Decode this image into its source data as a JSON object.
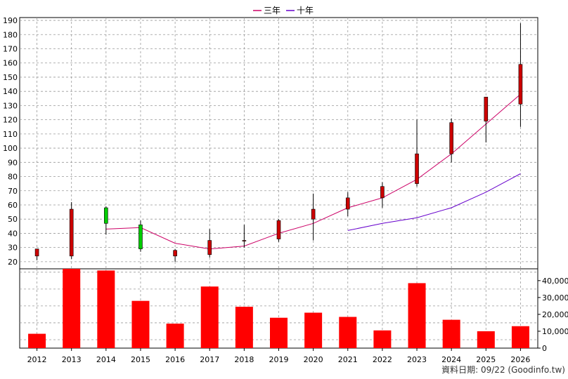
{
  "legend": {
    "items": [
      {
        "label": "三年",
        "color": "#cc0066"
      },
      {
        "label": "十年",
        "color": "#6600cc"
      }
    ]
  },
  "source_text": "資料日期: 09/22 (Goodinfo.tw)",
  "colors": {
    "up_candle": "#cc0000",
    "down_candle": "#00cc00",
    "bar": "#ff0000",
    "grid": "#999999"
  },
  "chart_data": [
    {
      "type": "candlestick",
      "title": "",
      "categories": [
        "2012",
        "2013",
        "2014",
        "2015",
        "2016",
        "2017",
        "2018",
        "2019",
        "2020",
        "2021",
        "2022",
        "2023",
        "2024",
        "2025",
        "2026"
      ],
      "ohlc": [
        {
          "open": 24,
          "high": 29,
          "low": 21,
          "close": 29
        },
        {
          "open": 24,
          "high": 62,
          "low": 22,
          "close": 57
        },
        {
          "open": 58,
          "high": 59,
          "low": 39,
          "close": 47
        },
        {
          "open": 46,
          "high": 49,
          "low": 27,
          "close": 29
        },
        {
          "open": 24,
          "high": 29,
          "low": 20,
          "close": 28
        },
        {
          "open": 25,
          "high": 43,
          "low": 23,
          "close": 35
        },
        {
          "open": 35,
          "high": 46,
          "low": 30,
          "close": 35
        },
        {
          "open": 36,
          "high": 50,
          "low": 34,
          "close": 49
        },
        {
          "open": 50,
          "high": 68,
          "low": 35,
          "close": 57
        },
        {
          "open": 57,
          "high": 69,
          "low": 52,
          "close": 65
        },
        {
          "open": 65,
          "high": 76,
          "low": 58,
          "close": 73
        },
        {
          "open": 75,
          "high": 120,
          "low": 73,
          "close": 96
        },
        {
          "open": 96,
          "high": 121,
          "low": 90,
          "close": 118
        },
        {
          "open": 119,
          "high": 136,
          "low": 104,
          "close": 136
        },
        {
          "open": 131,
          "high": 188,
          "low": 115,
          "close": 159
        }
      ],
      "series": [
        {
          "name": "三年",
          "color": "#cc0066",
          "values": [
            null,
            null,
            43,
            44,
            33,
            29,
            31,
            40,
            47,
            58,
            65,
            78,
            96,
            117,
            138
          ]
        },
        {
          "name": "十年",
          "color": "#6600cc",
          "values": [
            null,
            null,
            null,
            null,
            null,
            null,
            null,
            null,
            null,
            42,
            47,
            51,
            58,
            69,
            82
          ]
        }
      ],
      "y_ticks": [
        20,
        30,
        40,
        50,
        60,
        70,
        80,
        90,
        100,
        110,
        120,
        130,
        140,
        150,
        160,
        170,
        180,
        190
      ],
      "ylim": [
        15,
        192
      ],
      "grid": true,
      "legend_position": "top-center"
    },
    {
      "type": "bar",
      "title": "",
      "categories": [
        "2012",
        "2013",
        "2014",
        "2015",
        "2016",
        "2017",
        "2018",
        "2019",
        "2020",
        "2021",
        "2022",
        "2023",
        "2024",
        "2025",
        "2026"
      ],
      "values": [
        8500,
        47000,
        46000,
        28000,
        14500,
        36500,
        24500,
        18000,
        21000,
        18500,
        10500,
        38500,
        16800,
        10000,
        13000
      ],
      "y_ticks": [
        0,
        10000,
        20000,
        30000,
        40000
      ],
      "y_tick_labels": [
        "0",
        "10,000",
        "20,000",
        "30,000",
        "40,000"
      ],
      "ylim": [
        0,
        47000
      ],
      "grid": true
    }
  ]
}
